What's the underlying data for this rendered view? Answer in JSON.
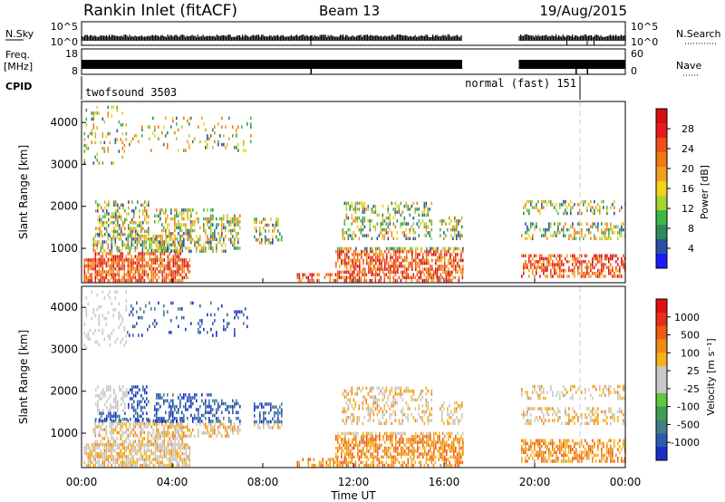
{
  "header": {
    "station": "Rankin Inlet (fitACF)",
    "beam": "Beam 13",
    "date": "19/Aug/2015"
  },
  "ancillary": {
    "nsky_label": "N.Sky",
    "nsky_ticks": [
      "10^5",
      "10^0"
    ],
    "nsearch_label": "N.Search",
    "nsearch_ticks": [
      "10^5",
      "10^0"
    ],
    "freq_label_line1": "Freq.",
    "freq_label_line2": "[MHz]",
    "freq_ticks": [
      "18",
      "8"
    ],
    "nave_label": "Nave",
    "nave_ticks": [
      "60",
      "0"
    ],
    "cpid_label": "CPID",
    "cpid_segments": [
      {
        "name": "twofsound 3503",
        "start_hour": 0,
        "end_hour": 22.0
      },
      {
        "name": "normal (fast) 151",
        "start_hour": 22.0,
        "end_hour": 24
      }
    ]
  },
  "chart_data": [
    {
      "type": "heatmap",
      "ylabel": "Slant Range [km]",
      "yticks": [
        "1000",
        "2000",
        "3000",
        "4000"
      ],
      "ylim": [
        180,
        4500
      ],
      "xlim": [
        0,
        24
      ],
      "colorbar": {
        "label": "Power [dB]",
        "ticks": [
          "4",
          "8",
          "12",
          "16",
          "20",
          "24",
          "28"
        ],
        "range": [
          0,
          32
        ],
        "colors": [
          "#1a1aff",
          "#2b4fa8",
          "#2f8a5a",
          "#3fb84a",
          "#a8d52b",
          "#f2d21a",
          "#f0a020",
          "#f07a14",
          "#f0501a",
          "#e81c1c",
          "#d50f0f"
        ]
      }
    },
    {
      "type": "heatmap",
      "ylabel": "Slant Range [km]",
      "yticks": [
        "1000",
        "2000",
        "3000",
        "4000"
      ],
      "ylim": [
        180,
        4500
      ],
      "xlim": [
        0,
        24
      ],
      "colorbar": {
        "label": "Velocity [m s⁻¹]",
        "ticks": [
          "1000",
          "500",
          "100",
          "25",
          "-25",
          "-100",
          "-500",
          "-1000"
        ],
        "colors": [
          "#1730c8",
          "#2f5ab0",
          "#3f7f86",
          "#3f9f52",
          "#5cc83a",
          "#c8c8c8",
          "#c8c8c8",
          "#f2b21a",
          "#f08a14",
          "#f05a14",
          "#e82e18",
          "#e01010"
        ]
      }
    }
  ],
  "xaxis": {
    "label": "Time UT",
    "ticks": [
      "00:00",
      "04:00",
      "08:00",
      "12:00",
      "16:00",
      "20:00",
      "00:00"
    ]
  }
}
